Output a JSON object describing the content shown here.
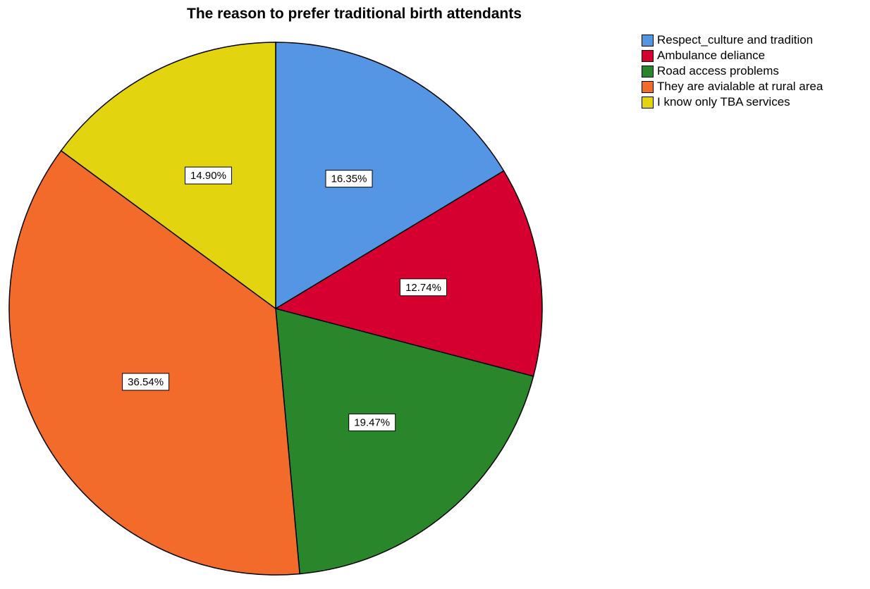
{
  "chart_data": {
    "type": "pie",
    "title": "The reason to prefer traditional birth attendants",
    "categories": [
      "Respect_culture and tradition",
      "Ambulance deliance",
      "Road access problems",
      "They are avialable at rural area",
      "I know only TBA services"
    ],
    "values": [
      16.35,
      12.74,
      19.47,
      36.54,
      14.9
    ],
    "data_labels": [
      "16.35%",
      "12.74%",
      "19.47%",
      "36.54%",
      "14.90%"
    ],
    "colors": [
      "#5596e4",
      "#d5002f",
      "#2a862a",
      "#f26b2a",
      "#e2d40e"
    ],
    "start_angle": "12 o'clock",
    "direction": "clockwise",
    "legend_position": "right"
  }
}
